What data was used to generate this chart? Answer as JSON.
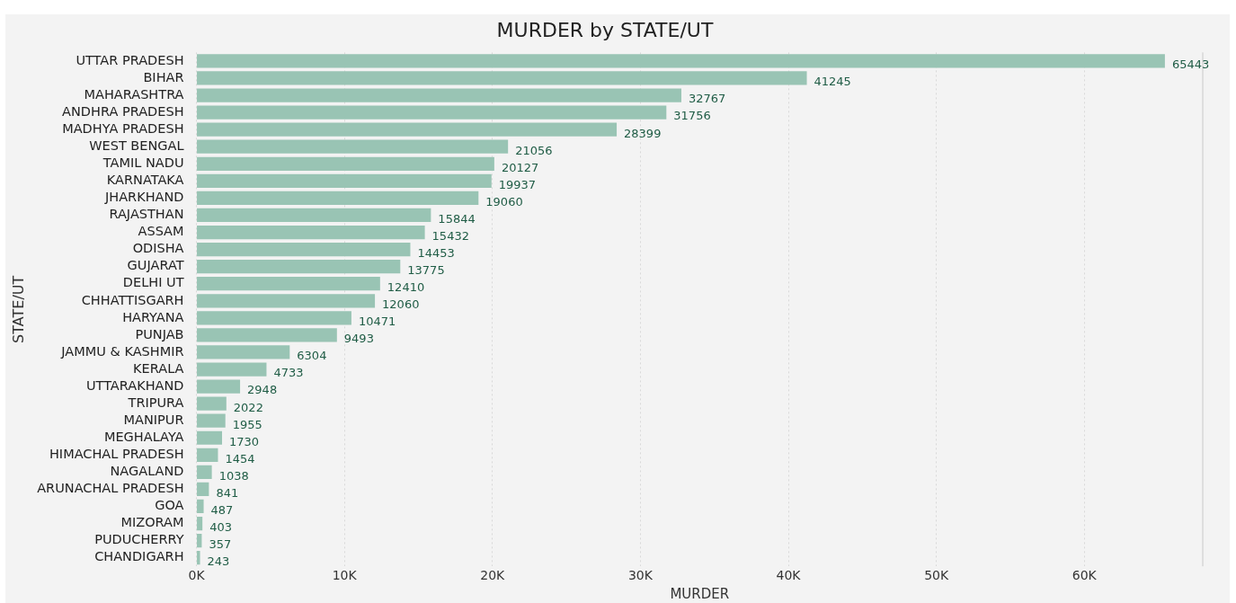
{
  "chart_data": {
    "type": "bar",
    "orientation": "horizontal",
    "title": "MURDER by STATE/UT",
    "xlabel": "MURDER",
    "ylabel": "STATE/UT",
    "categories": [
      "UTTAR PRADESH",
      "BIHAR",
      "MAHARASHTRA",
      "ANDHRA PRADESH",
      "MADHYA PRADESH",
      "WEST BENGAL",
      "TAMIL NADU",
      "KARNATAKA",
      "JHARKHAND",
      "RAJASTHAN",
      "ASSAM",
      "ODISHA",
      "GUJARAT",
      "DELHI UT",
      "CHHATTISGARH",
      "HARYANA",
      "PUNJAB",
      "JAMMU & KASHMIR",
      "KERALA",
      "UTTARAKHAND",
      "TRIPURA",
      "MANIPUR",
      "MEGHALAYA",
      "HIMACHAL PRADESH",
      "NAGALAND",
      "ARUNACHAL PRADESH",
      "GOA",
      "MIZORAM",
      "PUDUCHERRY",
      "CHANDIGARH"
    ],
    "values": [
      65443,
      41245,
      32767,
      31756,
      28399,
      21056,
      20127,
      19937,
      19060,
      15844,
      15432,
      14453,
      13775,
      12410,
      12060,
      10471,
      9493,
      6304,
      4733,
      2948,
      2022,
      1955,
      1730,
      1454,
      1038,
      841,
      487,
      403,
      357,
      243
    ],
    "color": "#99c4b4",
    "xlim": [
      0,
      68000
    ],
    "xticks": [
      {
        "value": 0,
        "label": "0K"
      },
      {
        "value": 10000,
        "label": "10K"
      },
      {
        "value": 20000,
        "label": "20K"
      },
      {
        "value": 30000,
        "label": "30K"
      },
      {
        "value": 40000,
        "label": "40K"
      },
      {
        "value": 50000,
        "label": "50K"
      },
      {
        "value": 60000,
        "label": "60K"
      }
    ],
    "grid": "x",
    "legend": false,
    "data_labels": true
  }
}
